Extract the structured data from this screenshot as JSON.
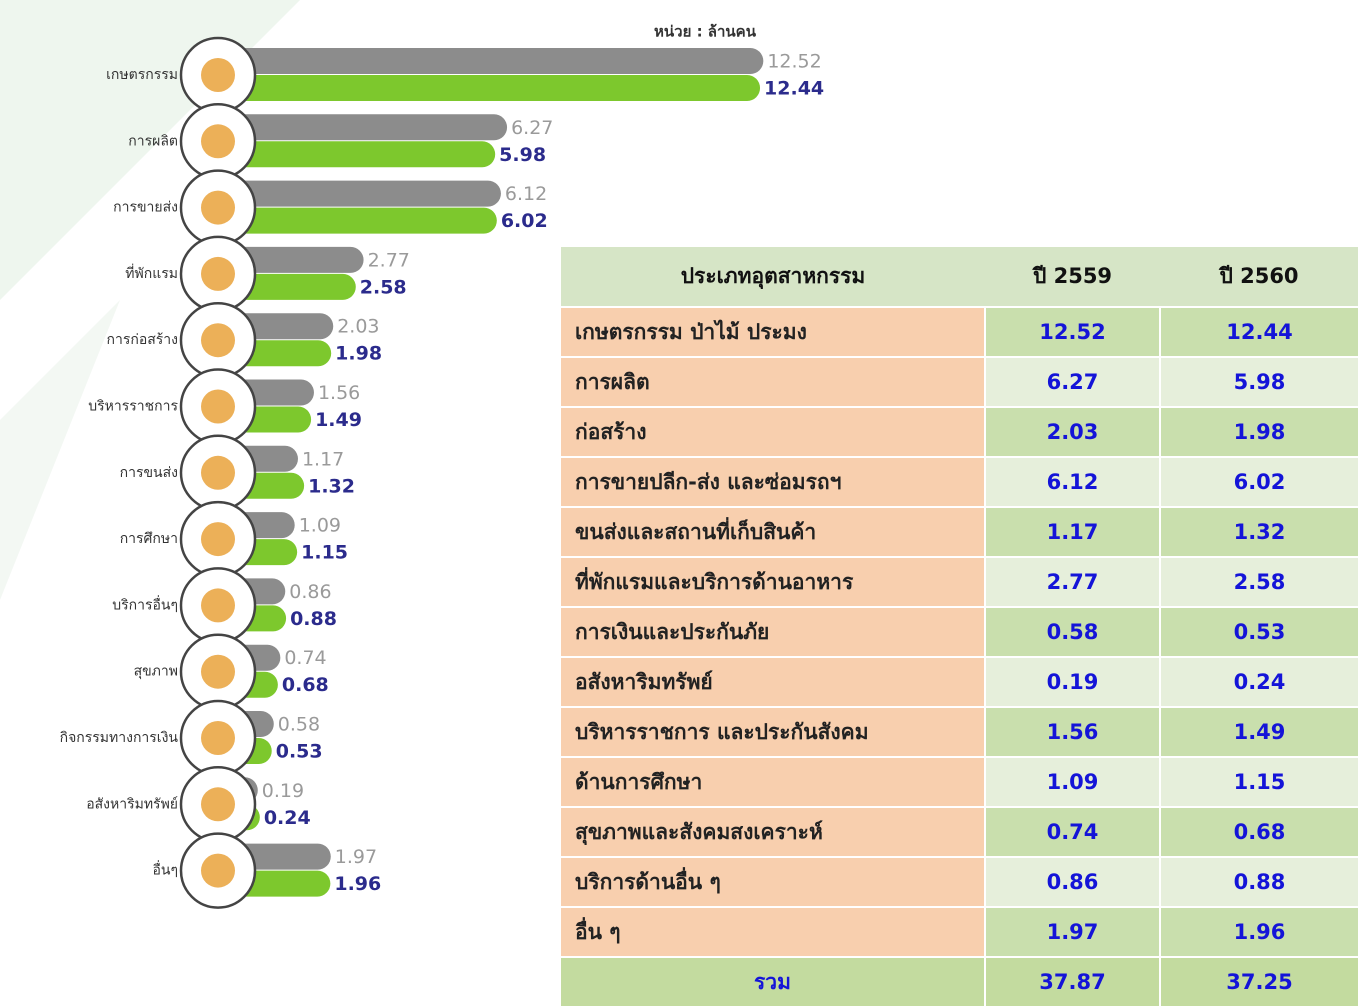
{
  "chart_data": {
    "type": "bar",
    "subtitle": "หน่วย : ล้านคน",
    "categories": [
      "เกษตรกรรม",
      "การผลิต",
      "การขายส่ง",
      "ที่พักแรม",
      "การก่อสร้าง",
      "บริหารราชการ",
      "การขนส่ง",
      "การศึกษา",
      "บริการอื่นๆ",
      "สุขภาพ",
      "กิจกรรมทางการเงิน",
      "อสังหาริมทรัพย์",
      "อื่นๆ"
    ],
    "series": [
      {
        "color": "#8c8c8c",
        "values": [
          12.52,
          6.27,
          6.12,
          2.77,
          2.03,
          1.56,
          1.17,
          1.09,
          0.86,
          0.74,
          0.58,
          0.19,
          1.97
        ]
      },
      {
        "color": "#7dc82d",
        "values": [
          12.44,
          5.98,
          6.02,
          2.58,
          1.98,
          1.49,
          1.32,
          1.15,
          0.88,
          0.68,
          0.53,
          0.24,
          1.96
        ]
      }
    ]
  },
  "table": {
    "header": [
      "ประเภทอุตสาหกรรม",
      "ปี 2559",
      "ปี 2560"
    ],
    "rows": [
      [
        "เกษตรกรรม ป่าไม้ ประมง",
        "12.52",
        "12.44"
      ],
      [
        "การผลิต",
        "6.27",
        "5.98"
      ],
      [
        "ก่อสร้าง",
        "2.03",
        "1.98"
      ],
      [
        "การขายปลีก-ส่ง และซ่อมรถฯ",
        "6.12",
        "6.02"
      ],
      [
        "ขนส่งและสถานที่เก็บสินค้า",
        "1.17",
        "1.32"
      ],
      [
        "ที่พักแรมและบริการด้านอาหาร",
        "2.77",
        "2.58"
      ],
      [
        "การเงินและประกันภัย",
        "0.58",
        "0.53"
      ],
      [
        "อสังหาริมทรัพย์",
        "0.19",
        "0.24"
      ],
      [
        "บริหารราชการ และประกันสังคม",
        "1.56",
        "1.49"
      ],
      [
        "ด้านการศึกษา",
        "1.09",
        "1.15"
      ],
      [
        "สุขภาพและสังคมสงเคราะห์",
        "0.74",
        "0.68"
      ],
      [
        "บริการด้านอื่น ๆ",
        "0.86",
        "0.88"
      ],
      [
        "อื่น ๆ",
        "1.97",
        "1.96"
      ]
    ],
    "total": [
      "รวม",
      "37.87",
      "37.25"
    ]
  }
}
